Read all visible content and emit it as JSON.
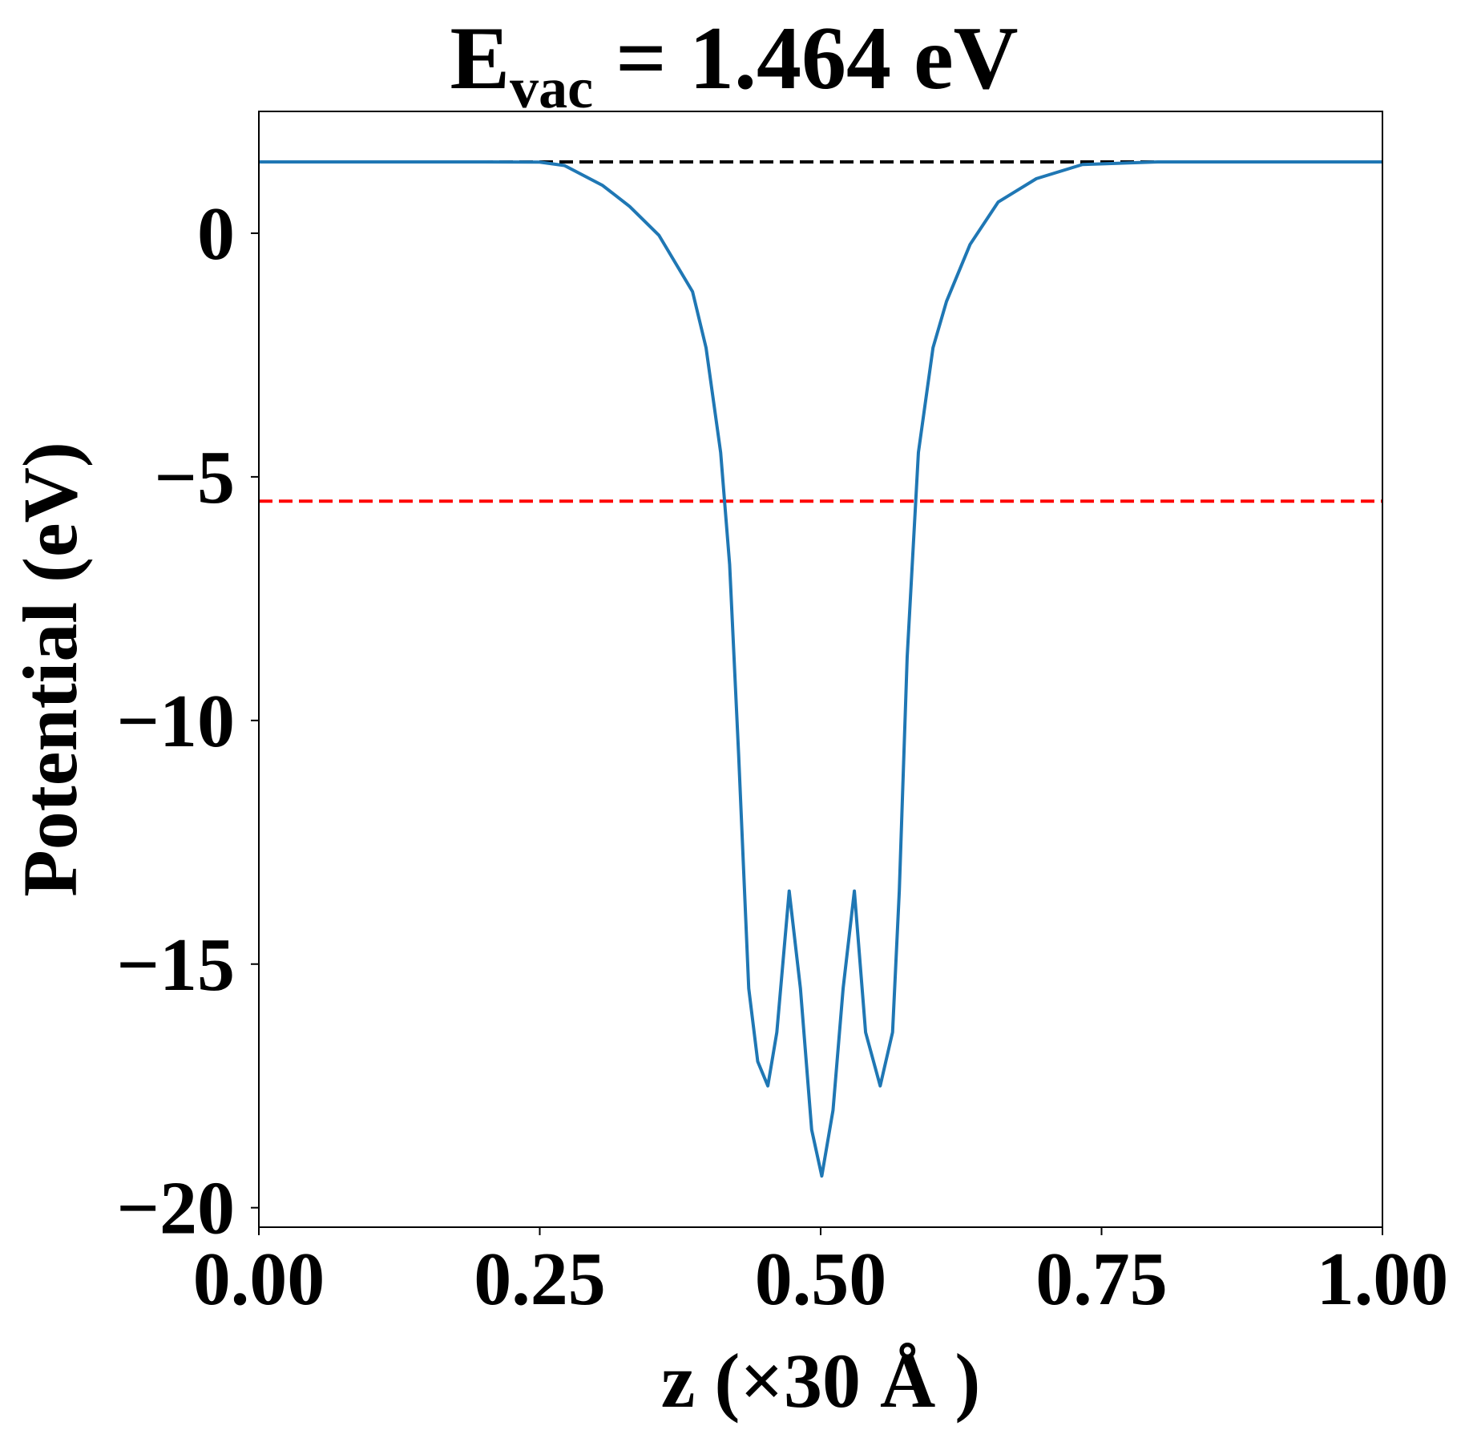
{
  "chart_data": {
    "type": "line",
    "title": {
      "main": "E",
      "subscript": "vac",
      "rest": "= 1.464 eV"
    },
    "x_label": "z (×30 Å )",
    "y_label": "Potential (eV)",
    "xlim": [
      0,
      1
    ],
    "ylim": [
      -20.4,
      2.5
    ],
    "xticks": [
      {
        "value": 0,
        "label": "0.00"
      },
      {
        "value": 0.25,
        "label": "0.25"
      },
      {
        "value": 0.5,
        "label": "0.50"
      },
      {
        "value": 0.75,
        "label": "0.75"
      },
      {
        "value": 1,
        "label": "1.00"
      }
    ],
    "yticks": [
      {
        "value": -20,
        "label": "−20"
      },
      {
        "value": -15,
        "label": "−15"
      },
      {
        "value": -10,
        "label": "−10"
      },
      {
        "value": -5,
        "label": "−5"
      },
      0
    ],
    "hlines": [
      {
        "value": 1.464,
        "color": "#000000"
      },
      {
        "value": -5.5,
        "color": "#ff0000"
      }
    ],
    "x": [
      0,
      0.1,
      0.2,
      0.25,
      0.272,
      0.306,
      0.33,
      0.356,
      0.386,
      0.398,
      0.411,
      0.419,
      0.427,
      0.436,
      0.444,
      0.453,
      0.461,
      0.472,
      0.482,
      0.492,
      0.501,
      0.511,
      0.52,
      0.53,
      0.54,
      0.553,
      0.564,
      0.57,
      0.577,
      0.587,
      0.6,
      0.612,
      0.633,
      0.658,
      0.692,
      0.733,
      0.8,
      0.9,
      1
    ],
    "series": [
      {
        "color": "#1f77b4",
        "values": [
          1.464,
          1.464,
          1.464,
          1.46,
          1.39,
          0.98,
          0.55,
          -0.04,
          -1.2,
          -2.35,
          -4.5,
          -6.8,
          -10.7,
          -15.5,
          -17.0,
          -17.5,
          -16.4,
          -13.5,
          -15.5,
          -18.4,
          -19.35,
          -18.0,
          -15.5,
          -13.5,
          -16.4,
          -17.5,
          -16.4,
          -13.5,
          -8.7,
          -4.5,
          -2.35,
          -1.4,
          -0.23,
          0.64,
          1.12,
          1.41,
          1.464,
          1.464,
          1.464
        ]
      }
    ]
  }
}
